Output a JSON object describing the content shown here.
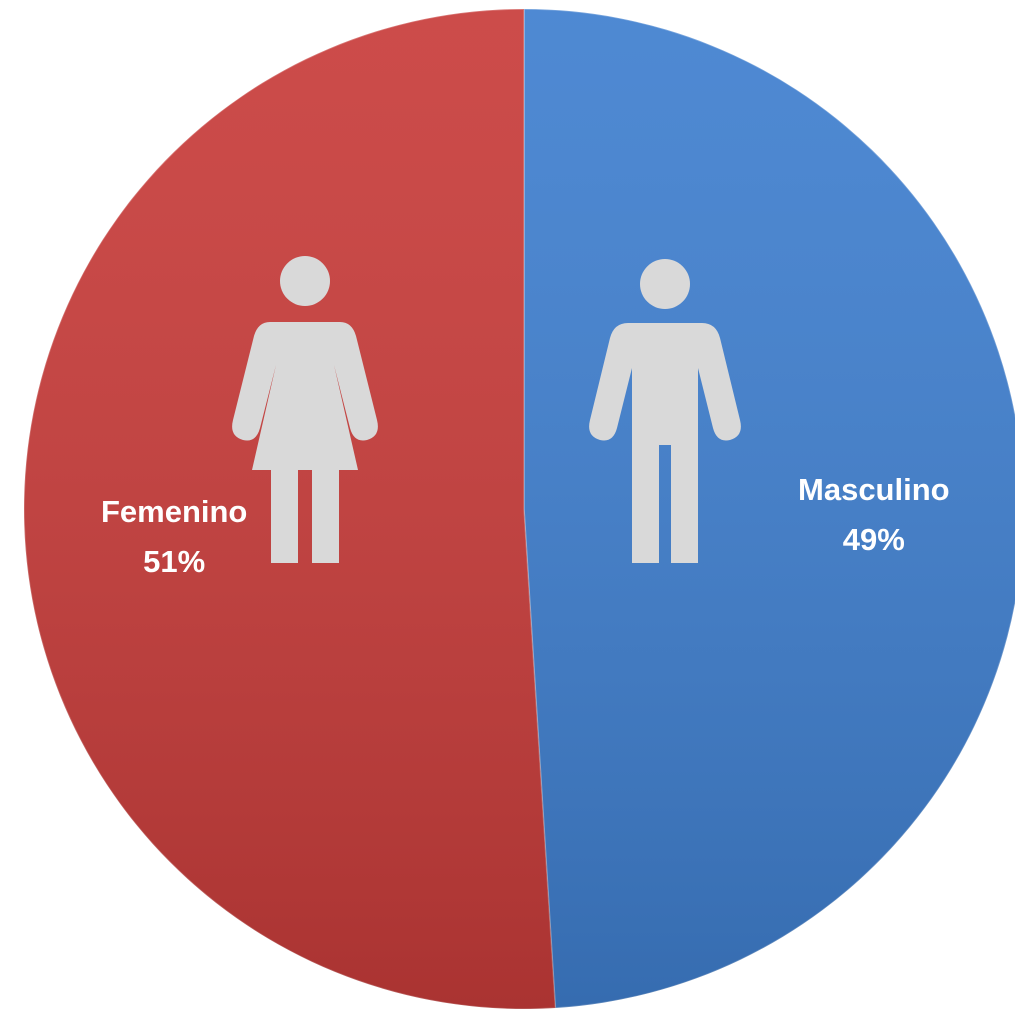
{
  "chart_data": {
    "type": "pie",
    "categories": [
      "Masculino",
      "Femenino"
    ],
    "values": [
      49,
      51
    ],
    "value_labels": [
      "49%",
      "51%"
    ],
    "colors": [
      "#3f7fcf",
      "#c83c3a"
    ]
  }
}
